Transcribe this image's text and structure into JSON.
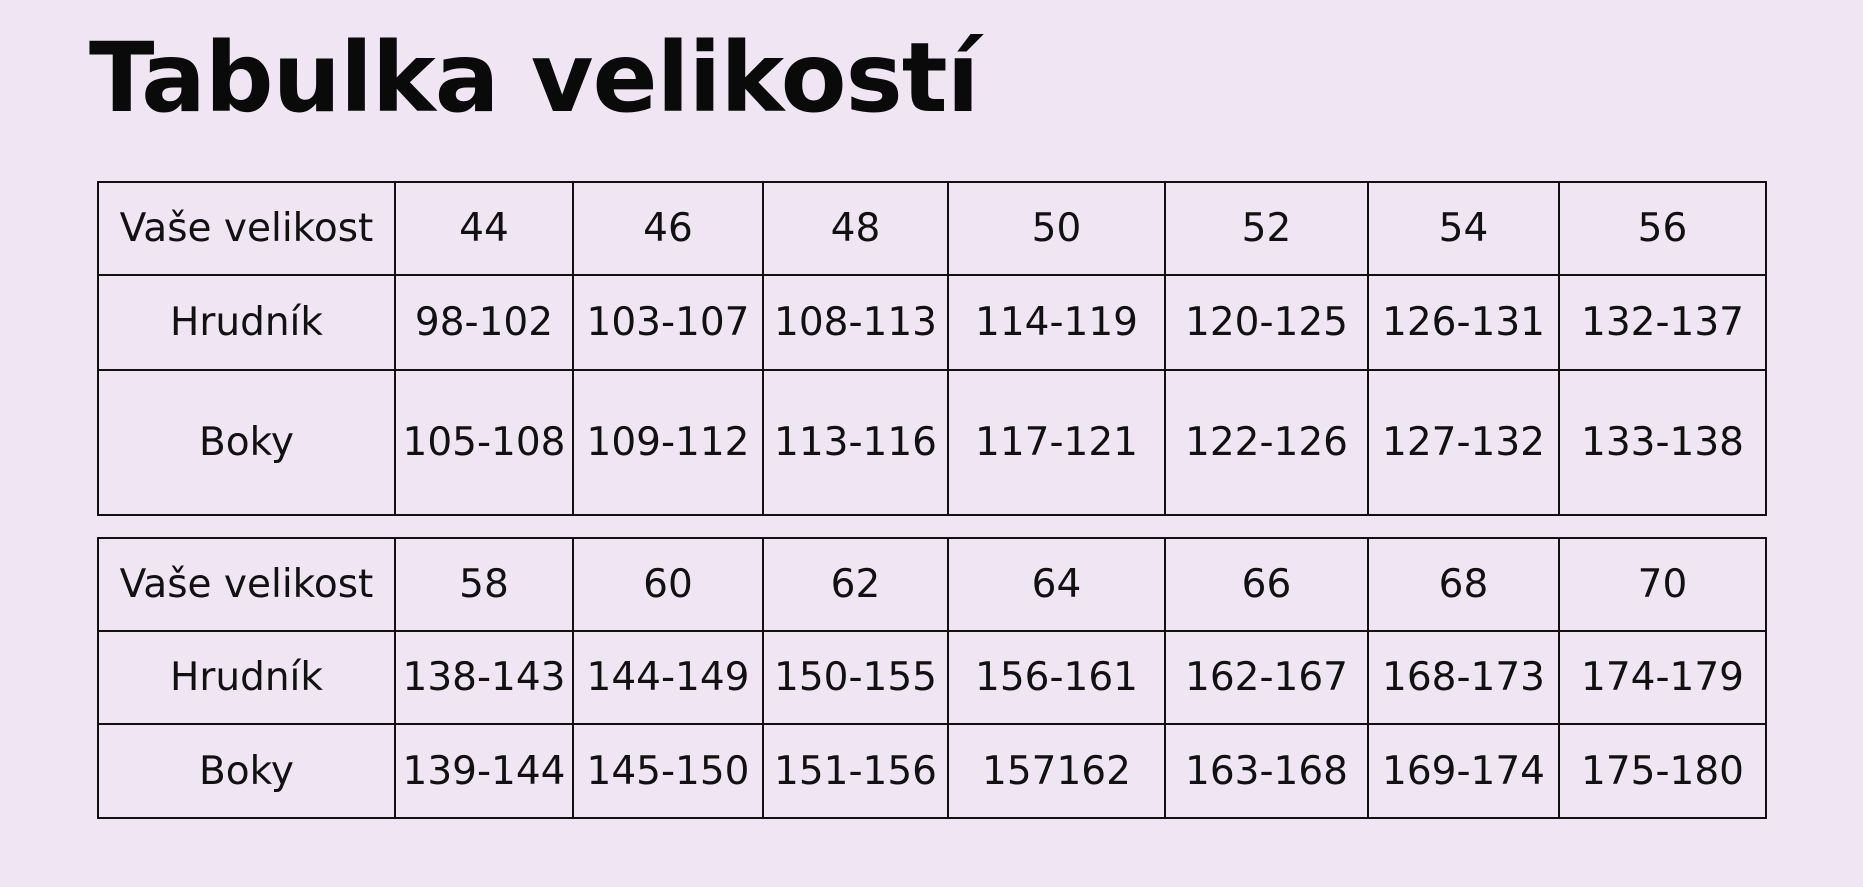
{
  "title": "Tabulka velikostí",
  "tables": [
    {
      "rows": [
        [
          "Vaše velikost",
          "44",
          "46",
          "48",
          "50",
          "52",
          "54",
          "56"
        ],
        [
          "Hrudník",
          "98-102",
          "103-107",
          "108-113",
          "114-119",
          "120-125",
          "126-131",
          "132-137"
        ],
        [
          "Boky",
          "105-108",
          "109-112",
          "113-116",
          "117-121",
          "122-126",
          "127-132",
          "133-138"
        ]
      ]
    },
    {
      "rows": [
        [
          "Vaše velikost",
          "58",
          "60",
          "62",
          "64",
          "66",
          "68",
          "70"
        ],
        [
          "Hrudník",
          "138-143",
          "144-149",
          "150-155",
          "156-161",
          "162-167",
          "168-173",
          "174-179"
        ],
        [
          "Boky",
          "139-144",
          "145-150",
          "151-156",
          "157162",
          "163-168",
          "169-174",
          "175-180"
        ]
      ]
    }
  ]
}
